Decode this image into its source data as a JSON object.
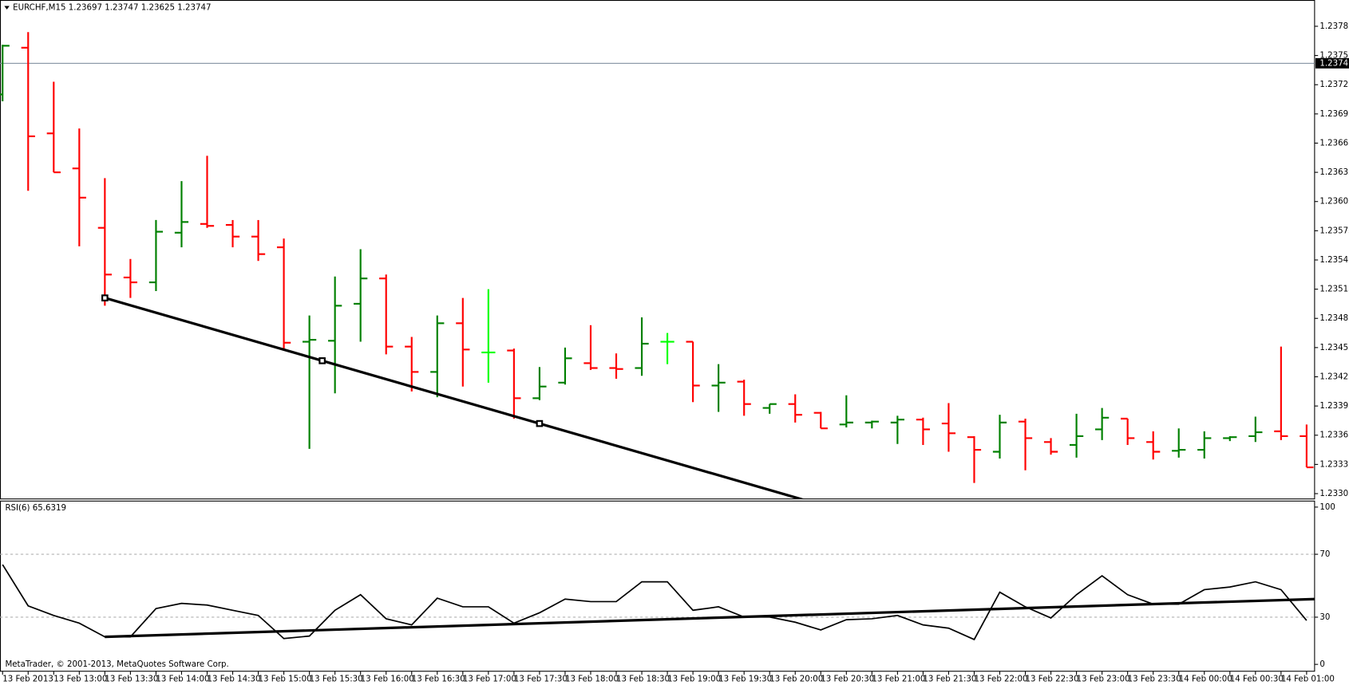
{
  "chart_data": [
    {
      "type": "ohlc",
      "title": "EURCHF,M15  1.23697 1.23747 1.23625 1.23747",
      "categories": [
        "13 Feb 2013",
        null,
        "13 Feb 13:00",
        null,
        "13 Feb 13:30",
        null,
        "13 Feb 14:00",
        null,
        "13 Feb 14:30",
        null,
        "13 Feb 15:00",
        null,
        "13 Feb 15:30",
        null,
        "13 Feb 16:00",
        null,
        "13 Feb 16:30",
        null,
        "13 Feb 17:00",
        null,
        "13 Feb 17:30",
        null,
        "13 Feb 18:00",
        null,
        "13 Feb 18:30",
        null,
        "13 Feb 19:00",
        null,
        "13 Feb 19:30",
        null,
        "13 Feb 20:00",
        null,
        "13 Feb 20:30",
        null,
        "13 Feb 21:00",
        null,
        "13 Feb 21:30",
        null,
        "13 Feb 22:00",
        null,
        "13 Feb 22:30",
        null,
        "13 Feb 23:00",
        null,
        "13 Feb 23:30",
        null,
        "14 Feb 00:00",
        null,
        "14 Feb 00:30",
        null,
        "14 Feb 01:00",
        null
      ],
      "open": [
        1.23715,
        1.23763,
        1.23675,
        1.23639,
        1.23578,
        1.23527,
        1.23522,
        1.23573,
        1.23582,
        1.23581,
        1.23569,
        1.23558,
        1.23461,
        1.23462,
        1.235,
        1.23526,
        1.23456,
        1.2343,
        1.2348,
        1.2345,
        1.23452,
        1.23403,
        1.23419,
        1.23439,
        1.23434,
        1.23434,
        1.23461,
        1.23461,
        1.23416,
        1.2342,
        1.23393,
        1.23397,
        1.23388,
        1.23376,
        1.23378,
        1.23378,
        1.23381,
        1.23377,
        1.23363,
        1.23348,
        1.23379,
        1.23358,
        1.23355,
        1.23371,
        1.23382,
        1.23358,
        1.23349,
        1.2335,
        1.23362,
        1.23364,
        1.23369,
        1.23364
      ],
      "high": [
        1.23766,
        1.23779,
        1.23728,
        1.2368,
        1.23629,
        1.23546,
        1.23586,
        1.23626,
        1.23652,
        1.23586,
        1.23586,
        1.23567,
        1.23488,
        1.23528,
        1.23556,
        1.2353,
        1.23466,
        1.23488,
        1.23506,
        1.23515,
        1.23454,
        1.23435,
        1.23455,
        1.23478,
        1.23449,
        1.23486,
        1.2347,
        1.23461,
        1.23438,
        1.23422,
        1.23397,
        1.23407,
        1.23389,
        1.23406,
        1.2338,
        1.23385,
        1.23383,
        1.23398,
        1.23364,
        1.23386,
        1.23382,
        1.23362,
        1.23387,
        1.23393,
        1.23382,
        1.23369,
        1.23372,
        1.23369,
        1.23364,
        1.23384,
        1.23456,
        1.23376
      ],
      "low": [
        1.23708,
        1.23616,
        1.23635,
        1.23559,
        1.23498,
        1.23506,
        1.23513,
        1.23558,
        1.23578,
        1.23558,
        1.23544,
        1.23453,
        1.23351,
        1.23408,
        1.23461,
        1.23448,
        1.2341,
        1.23404,
        1.23415,
        1.23419,
        1.23382,
        1.23401,
        1.23417,
        1.23432,
        1.23423,
        1.23426,
        1.23438,
        1.23399,
        1.23389,
        1.23385,
        1.23387,
        1.23378,
        1.23372,
        1.23373,
        1.23372,
        1.23356,
        1.23355,
        1.23348,
        1.23316,
        1.23341,
        1.23329,
        1.23345,
        1.23342,
        1.2336,
        1.23355,
        1.2334,
        1.23342,
        1.23341,
        1.23359,
        1.23358,
        1.2336,
        1.23332
      ],
      "close": [
        1.23765,
        1.23672,
        1.23635,
        1.23609,
        1.2353,
        1.23522,
        1.23574,
        1.23584,
        1.2358,
        1.23569,
        1.23551,
        1.2346,
        1.23463,
        1.23498,
        1.23526,
        1.23456,
        1.2343,
        1.2348,
        1.23453,
        1.2345,
        1.23403,
        1.23415,
        1.23444,
        1.23434,
        1.23433,
        1.23459,
        1.23461,
        1.23416,
        1.23419,
        1.23397,
        1.23397,
        1.23386,
        1.23372,
        1.23378,
        1.23379,
        1.23381,
        1.23371,
        1.23367,
        1.2335,
        1.23378,
        1.23362,
        1.23348,
        1.23364,
        1.23383,
        1.23362,
        1.23348,
        1.2335,
        1.23362,
        1.23363,
        1.23368,
        1.23364,
        1.23332
      ],
      "colors": {
        "up": "#008000",
        "down": "#ff0000",
        "unchanged": "#00ff00"
      },
      "ylim": [
        1.233,
        1.23812
      ],
      "yticks": [
        1.23785,
        1.23755,
        1.23725,
        1.23695,
        1.23665,
        1.23635,
        1.23605,
        1.23575,
        1.23545,
        1.23515,
        1.23485,
        1.23455,
        1.23425,
        1.23395,
        1.23365,
        1.23335,
        1.23305
      ],
      "current_price": 1.23747,
      "trendline": {
        "color": "#000000",
        "x": [
          4,
          21
        ],
        "y": [
          1.23506,
          1.23377
        ]
      }
    },
    {
      "type": "line",
      "title": "RSI(6) 65.6319",
      "values": [
        63.4,
        37.2,
        31.1,
        26.2,
        17.5,
        17.5,
        35.5,
        38.8,
        37.7,
        34.4,
        31.1,
        16.4,
        18.0,
        34.4,
        44.3,
        29.0,
        25.1,
        42.1,
        36.6,
        36.6,
        26.2,
        32.8,
        41.5,
        39.9,
        39.9,
        52.5,
        52.5,
        34.4,
        36.6,
        30.1,
        30.1,
        26.8,
        21.9,
        28.4,
        29.0,
        31.1,
        25.1,
        23.0,
        15.8,
        45.9,
        36.6,
        29.5,
        44.3,
        56.3,
        44.3,
        38.3,
        38.3,
        47.5,
        49.2,
        52.5,
        47.5,
        27.9
      ],
      "color": "#000000",
      "ylim": [
        0,
        100
      ],
      "yticks": [
        0,
        30,
        70,
        100
      ],
      "levels": [
        30,
        70
      ],
      "trendline": {
        "color": "#000000",
        "x": [
          4,
          29
        ],
        "y": [
          17.5,
          30.2
        ]
      },
      "footer": "MetaTrader, © 2001-2013, MetaQuotes Software Corp."
    }
  ]
}
